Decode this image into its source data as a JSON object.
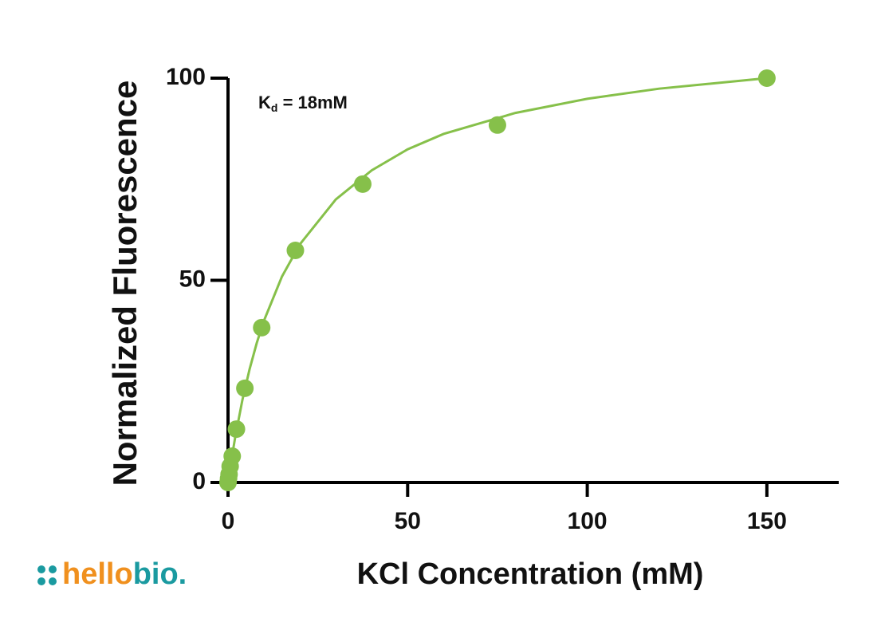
{
  "chart_data": {
    "type": "scatter",
    "y_label": "Normalized Fluorescence",
    "x_label": "KCl Concentration (mM)",
    "annotation": {
      "symbol": "K",
      "subscript": "d",
      "text": " = 18mM"
    },
    "logo": {
      "part1": "hello",
      "part2": "bio."
    },
    "xlim": [
      0,
      170
    ],
    "ylim": [
      0,
      100
    ],
    "xticks": [
      0,
      50,
      100,
      150
    ],
    "yticks": [
      0,
      50,
      100
    ],
    "series": [
      {
        "color": "#86c04a",
        "x": [
          0,
          0.15,
          0.29,
          0.59,
          1.17,
          2.34,
          4.69,
          9.375,
          18.75,
          37.5,
          75,
          150
        ],
        "values": [
          0,
          1,
          2,
          4,
          6.5,
          13.2,
          23.3,
          38.3,
          57.4,
          73.8,
          88.4,
          100
        ]
      }
    ],
    "fit": {
      "color": "#86c04a",
      "x": [
        0,
        1,
        2,
        4,
        6,
        8,
        10,
        15,
        20,
        30,
        40,
        50,
        60,
        80,
        100,
        120,
        150
      ],
      "values": [
        0,
        5.9,
        11.2,
        20.4,
        28.0,
        34.5,
        40.0,
        50.9,
        58.9,
        70.0,
        77.2,
        82.4,
        86.2,
        91.4,
        94.9,
        97.4,
        100
      ]
    }
  }
}
